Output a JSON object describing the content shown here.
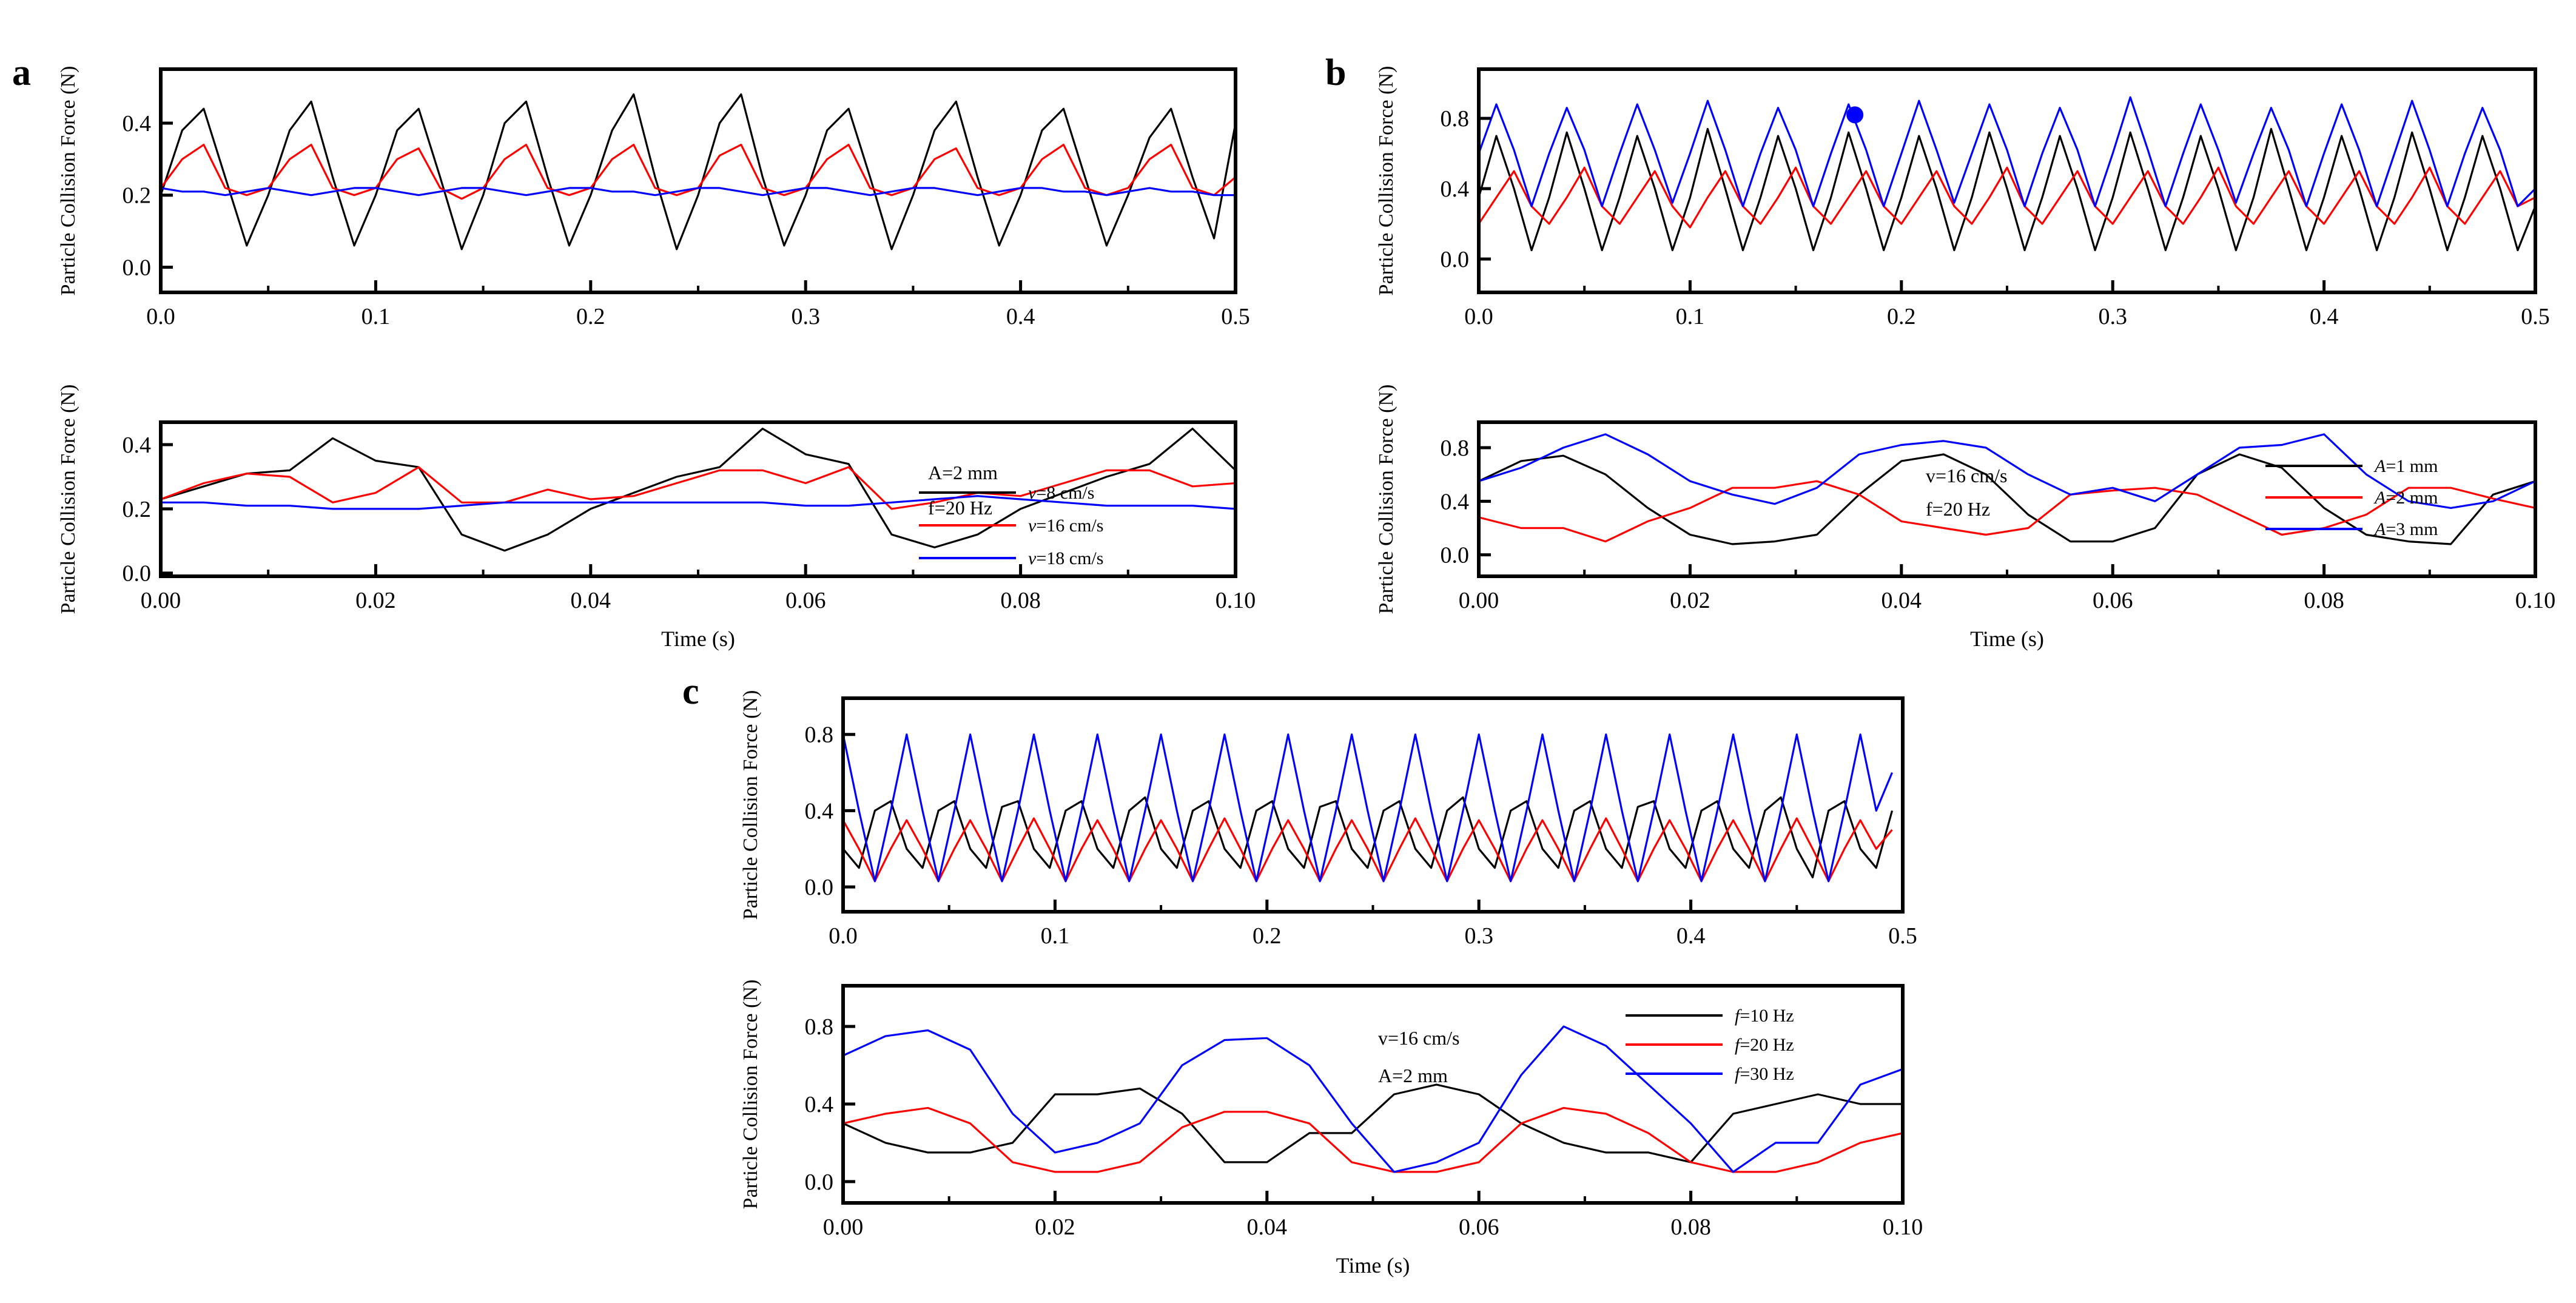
{
  "colors": {
    "black": "#000000",
    "red": "#ff0000",
    "blue": "#0000ff"
  },
  "chart_data": [
    {
      "id": "a-top",
      "panel_letter": "a",
      "type": "line",
      "ylabel": "Particle Collision Force (N)",
      "xlabel": "",
      "xlim": [
        0,
        0.5
      ],
      "ylim": [
        -0.07,
        0.55
      ],
      "xticks": [
        "0.0",
        "0.1",
        "0.2",
        "0.3",
        "0.4",
        "0.5"
      ],
      "yticks": [
        "0.0",
        "0.2",
        "0.4"
      ],
      "x_start": 0,
      "x_step": 0.01,
      "series": [
        {
          "name": "v=8 cm/s",
          "color": "black",
          "values": [
            0.2,
            0.38,
            0.44,
            0.25,
            0.06,
            0.2,
            0.38,
            0.46,
            0.25,
            0.06,
            0.2,
            0.38,
            0.44,
            0.25,
            0.05,
            0.2,
            0.4,
            0.46,
            0.25,
            0.06,
            0.2,
            0.38,
            0.48,
            0.25,
            0.05,
            0.2,
            0.4,
            0.48,
            0.25,
            0.06,
            0.2,
            0.38,
            0.44,
            0.25,
            0.05,
            0.2,
            0.38,
            0.46,
            0.25,
            0.06,
            0.2,
            0.38,
            0.44,
            0.25,
            0.06,
            0.2,
            0.36,
            0.44,
            0.25,
            0.08,
            0.4
          ]
        },
        {
          "name": "v=16 cm/s",
          "color": "red",
          "values": [
            0.22,
            0.3,
            0.34,
            0.22,
            0.2,
            0.22,
            0.3,
            0.34,
            0.22,
            0.2,
            0.22,
            0.3,
            0.33,
            0.22,
            0.19,
            0.22,
            0.3,
            0.34,
            0.22,
            0.2,
            0.22,
            0.3,
            0.34,
            0.22,
            0.2,
            0.22,
            0.31,
            0.34,
            0.22,
            0.2,
            0.22,
            0.3,
            0.34,
            0.22,
            0.2,
            0.22,
            0.3,
            0.33,
            0.22,
            0.2,
            0.22,
            0.3,
            0.34,
            0.22,
            0.2,
            0.22,
            0.3,
            0.34,
            0.22,
            0.2,
            0.25
          ]
        },
        {
          "name": "v=18 cm/s",
          "color": "blue",
          "values": [
            0.22,
            0.21,
            0.21,
            0.2,
            0.21,
            0.22,
            0.21,
            0.2,
            0.21,
            0.22,
            0.22,
            0.21,
            0.2,
            0.21,
            0.22,
            0.22,
            0.21,
            0.2,
            0.21,
            0.22,
            0.22,
            0.21,
            0.21,
            0.2,
            0.21,
            0.22,
            0.22,
            0.21,
            0.2,
            0.21,
            0.22,
            0.22,
            0.21,
            0.2,
            0.21,
            0.22,
            0.22,
            0.21,
            0.2,
            0.21,
            0.22,
            0.22,
            0.21,
            0.21,
            0.2,
            0.21,
            0.22,
            0.21,
            0.21,
            0.2,
            0.2
          ]
        }
      ]
    },
    {
      "id": "a-bottom",
      "panel_letter": "",
      "type": "line",
      "ylabel": "Particle Collision Force (N)",
      "xlabel": "Time (s)",
      "xlim": [
        0,
        0.1
      ],
      "ylim": [
        -0.01,
        0.47
      ],
      "xticks": [
        "0.00",
        "0.02",
        "0.04",
        "0.06",
        "0.08",
        "0.10"
      ],
      "yticks": [
        "0.0",
        "0.2",
        "0.4"
      ],
      "annotations": [
        "A=2 mm",
        "f=20 Hz"
      ],
      "legend": "right",
      "x_start": 0,
      "x_step": 0.004,
      "series": [
        {
          "name": "v=8 cm/s",
          "color": "black",
          "values": [
            0.23,
            0.27,
            0.31,
            0.32,
            0.42,
            0.35,
            0.33,
            0.12,
            0.07,
            0.12,
            0.2,
            0.25,
            0.3,
            0.33,
            0.45,
            0.37,
            0.34,
            0.12,
            0.08,
            0.12,
            0.2,
            0.25,
            0.3,
            0.34,
            0.45,
            0.32
          ]
        },
        {
          "name": "v=16 cm/s",
          "color": "red",
          "values": [
            0.23,
            0.28,
            0.31,
            0.3,
            0.22,
            0.25,
            0.33,
            0.22,
            0.22,
            0.26,
            0.23,
            0.24,
            0.28,
            0.32,
            0.32,
            0.28,
            0.33,
            0.2,
            0.22,
            0.25,
            0.24,
            0.28,
            0.32,
            0.32,
            0.27,
            0.28
          ]
        },
        {
          "name": "v=18 cm/s",
          "color": "blue",
          "values": [
            0.22,
            0.22,
            0.21,
            0.21,
            0.2,
            0.2,
            0.2,
            0.21,
            0.22,
            0.22,
            0.22,
            0.22,
            0.22,
            0.22,
            0.22,
            0.21,
            0.21,
            0.22,
            0.23,
            0.24,
            0.23,
            0.22,
            0.21,
            0.21,
            0.21,
            0.2
          ]
        }
      ]
    },
    {
      "id": "b-top",
      "panel_letter": "b",
      "type": "line",
      "ylabel": "Particle Collision Force (N)",
      "xlabel": "",
      "xlim": [
        0,
        0.5
      ],
      "ylim": [
        -0.19,
        1.08
      ],
      "xticks": [
        "0.0",
        "0.1",
        "0.2",
        "0.3",
        "0.4",
        "0.5"
      ],
      "yticks": [
        "0.0",
        "0.4",
        "0.8"
      ],
      "x_start": 0,
      "x_step": 0.008333,
      "marker": {
        "x": 0.178,
        "y": 0.82,
        "color": "blue"
      },
      "series": [
        {
          "name": "A=1 mm",
          "color": "black",
          "values": [
            0.35,
            0.7,
            0.4,
            0.05,
            0.35,
            0.72,
            0.4,
            0.05,
            0.35,
            0.7,
            0.4,
            0.05,
            0.35,
            0.74,
            0.4,
            0.05,
            0.35,
            0.7,
            0.4,
            0.05,
            0.35,
            0.72,
            0.4,
            0.05,
            0.35,
            0.7,
            0.4,
            0.05,
            0.35,
            0.72,
            0.4,
            0.05,
            0.35,
            0.7,
            0.4,
            0.05,
            0.35,
            0.72,
            0.4,
            0.05,
            0.35,
            0.7,
            0.4,
            0.05,
            0.35,
            0.74,
            0.4,
            0.05,
            0.35,
            0.7,
            0.4,
            0.05,
            0.35,
            0.72,
            0.4,
            0.05,
            0.35,
            0.7,
            0.4,
            0.05,
            0.3
          ]
        },
        {
          "name": "A=2 mm",
          "color": "red",
          "values": [
            0.2,
            0.35,
            0.5,
            0.3,
            0.2,
            0.35,
            0.52,
            0.3,
            0.2,
            0.35,
            0.5,
            0.3,
            0.18,
            0.35,
            0.5,
            0.3,
            0.2,
            0.35,
            0.52,
            0.3,
            0.2,
            0.35,
            0.5,
            0.3,
            0.2,
            0.35,
            0.5,
            0.3,
            0.2,
            0.35,
            0.52,
            0.3,
            0.2,
            0.35,
            0.5,
            0.3,
            0.2,
            0.35,
            0.5,
            0.3,
            0.2,
            0.35,
            0.52,
            0.3,
            0.2,
            0.35,
            0.5,
            0.3,
            0.2,
            0.35,
            0.5,
            0.3,
            0.2,
            0.35,
            0.52,
            0.3,
            0.2,
            0.35,
            0.5,
            0.3,
            0.35
          ]
        },
        {
          "name": "A=3 mm",
          "color": "blue",
          "values": [
            0.6,
            0.88,
            0.62,
            0.3,
            0.6,
            0.86,
            0.62,
            0.3,
            0.6,
            0.88,
            0.62,
            0.32,
            0.6,
            0.9,
            0.62,
            0.3,
            0.6,
            0.86,
            0.62,
            0.3,
            0.6,
            0.88,
            0.62,
            0.3,
            0.6,
            0.9,
            0.62,
            0.32,
            0.6,
            0.88,
            0.62,
            0.3,
            0.6,
            0.86,
            0.62,
            0.3,
            0.6,
            0.92,
            0.62,
            0.3,
            0.6,
            0.88,
            0.62,
            0.32,
            0.6,
            0.86,
            0.62,
            0.3,
            0.6,
            0.88,
            0.62,
            0.3,
            0.6,
            0.9,
            0.62,
            0.3,
            0.6,
            0.86,
            0.62,
            0.3,
            0.4
          ]
        }
      ]
    },
    {
      "id": "b-bottom",
      "panel_letter": "",
      "type": "line",
      "ylabel": "Particle Collision Force (N)",
      "xlabel": "Time (s)",
      "xlim": [
        0,
        0.1
      ],
      "ylim": [
        -0.16,
        0.99
      ],
      "xticks": [
        "0.00",
        "0.02",
        "0.04",
        "0.06",
        "0.08",
        "0.10"
      ],
      "yticks": [
        "0.0",
        "0.4",
        "0.8"
      ],
      "annotations": [
        "v=16 cm/s",
        "f=20 Hz"
      ],
      "legend": "top-right",
      "x_start": 0,
      "x_step": 0.004,
      "series": [
        {
          "name": "A=1 mm",
          "color": "black",
          "values": [
            0.55,
            0.7,
            0.74,
            0.6,
            0.35,
            0.15,
            0.08,
            0.1,
            0.15,
            0.45,
            0.7,
            0.75,
            0.6,
            0.3,
            0.1,
            0.1,
            0.2,
            0.6,
            0.75,
            0.65,
            0.35,
            0.15,
            0.1,
            0.08,
            0.45,
            0.55
          ]
        },
        {
          "name": "A=2 mm",
          "color": "red",
          "values": [
            0.28,
            0.2,
            0.2,
            0.1,
            0.25,
            0.35,
            0.5,
            0.5,
            0.55,
            0.45,
            0.25,
            0.2,
            0.15,
            0.2,
            0.45,
            0.48,
            0.5,
            0.45,
            0.3,
            0.15,
            0.2,
            0.3,
            0.5,
            0.5,
            0.42,
            0.35
          ]
        },
        {
          "name": "A=3 mm",
          "color": "blue",
          "values": [
            0.55,
            0.65,
            0.8,
            0.9,
            0.75,
            0.55,
            0.45,
            0.38,
            0.5,
            0.75,
            0.82,
            0.85,
            0.8,
            0.6,
            0.45,
            0.5,
            0.4,
            0.6,
            0.8,
            0.82,
            0.9,
            0.6,
            0.4,
            0.35,
            0.4,
            0.55
          ]
        }
      ]
    },
    {
      "id": "c-top",
      "panel_letter": "c",
      "type": "line",
      "ylabel": "Particle Collision Force (N)",
      "xlabel": "",
      "xlim": [
        0,
        0.5
      ],
      "ylim": [
        -0.13,
        0.99
      ],
      "xticks": [
        "0.0",
        "0.1",
        "0.2",
        "0.3",
        "0.4",
        "0.5"
      ],
      "yticks": [
        "0.0",
        "0.4",
        "0.8"
      ],
      "x_start": 0,
      "x_step": 0.0075,
      "series": [
        {
          "name": "f=10 Hz",
          "color": "black",
          "values": [
            0.2,
            0.1,
            0.4,
            0.45,
            0.2,
            0.1,
            0.4,
            0.45,
            0.2,
            0.1,
            0.42,
            0.45,
            0.2,
            0.1,
            0.4,
            0.45,
            0.2,
            0.1,
            0.4,
            0.47,
            0.2,
            0.1,
            0.4,
            0.45,
            0.2,
            0.1,
            0.4,
            0.45,
            0.2,
            0.1,
            0.42,
            0.45,
            0.2,
            0.1,
            0.4,
            0.45,
            0.2,
            0.1,
            0.4,
            0.47,
            0.2,
            0.1,
            0.4,
            0.45,
            0.2,
            0.1,
            0.4,
            0.45,
            0.2,
            0.1,
            0.42,
            0.45,
            0.2,
            0.1,
            0.4,
            0.45,
            0.2,
            0.1,
            0.4,
            0.47,
            0.2,
            0.05,
            0.4,
            0.45,
            0.2,
            0.1,
            0.4
          ]
        },
        {
          "name": "f=20 Hz",
          "color": "red",
          "values": [
            0.35,
            0.2,
            0.03,
            0.2,
            0.35,
            0.2,
            0.03,
            0.2,
            0.35,
            0.2,
            0.03,
            0.2,
            0.36,
            0.2,
            0.03,
            0.2,
            0.35,
            0.2,
            0.03,
            0.2,
            0.35,
            0.2,
            0.03,
            0.2,
            0.36,
            0.2,
            0.03,
            0.2,
            0.35,
            0.2,
            0.03,
            0.2,
            0.35,
            0.2,
            0.03,
            0.2,
            0.36,
            0.2,
            0.03,
            0.2,
            0.35,
            0.2,
            0.03,
            0.2,
            0.35,
            0.2,
            0.03,
            0.2,
            0.36,
            0.2,
            0.03,
            0.2,
            0.35,
            0.2,
            0.03,
            0.2,
            0.35,
            0.2,
            0.03,
            0.2,
            0.36,
            0.2,
            0.03,
            0.2,
            0.35,
            0.2,
            0.3
          ]
        },
        {
          "name": "f=30 Hz",
          "color": "blue",
          "values": [
            0.8,
            0.4,
            0.03,
            0.4,
            0.8,
            0.4,
            0.03,
            0.4,
            0.8,
            0.4,
            0.03,
            0.4,
            0.8,
            0.4,
            0.03,
            0.4,
            0.8,
            0.4,
            0.03,
            0.4,
            0.8,
            0.4,
            0.03,
            0.4,
            0.8,
            0.4,
            0.03,
            0.4,
            0.8,
            0.4,
            0.03,
            0.4,
            0.8,
            0.4,
            0.03,
            0.4,
            0.8,
            0.4,
            0.03,
            0.4,
            0.8,
            0.4,
            0.03,
            0.4,
            0.8,
            0.4,
            0.03,
            0.4,
            0.8,
            0.4,
            0.03,
            0.4,
            0.8,
            0.4,
            0.03,
            0.4,
            0.8,
            0.4,
            0.03,
            0.4,
            0.8,
            0.4,
            0.03,
            0.4,
            0.8,
            0.4,
            0.6
          ]
        }
      ]
    },
    {
      "id": "c-bottom",
      "panel_letter": "",
      "type": "line",
      "ylabel": "Particle Collision Force (N)",
      "xlabel": "Time (s)",
      "xlim": [
        0,
        0.1
      ],
      "ylim": [
        -0.11,
        1.01
      ],
      "xticks": [
        "0.00",
        "0.02",
        "0.04",
        "0.06",
        "0.08",
        "0.10"
      ],
      "yticks": [
        "0.0",
        "0.4",
        "0.8"
      ],
      "annotations": [
        "v=16 cm/s",
        "A=2 mm"
      ],
      "legend": "top-right",
      "x_start": 0,
      "x_step": 0.004,
      "series": [
        {
          "name": "f=10 Hz",
          "color": "black",
          "values": [
            0.3,
            0.2,
            0.15,
            0.15,
            0.2,
            0.45,
            0.45,
            0.48,
            0.35,
            0.1,
            0.1,
            0.25,
            0.25,
            0.45,
            0.5,
            0.45,
            0.3,
            0.2,
            0.15,
            0.15,
            0.1,
            0.35,
            0.4,
            0.45,
            0.4,
            0.4
          ]
        },
        {
          "name": "f=20 Hz",
          "color": "red",
          "values": [
            0.3,
            0.35,
            0.38,
            0.3,
            0.1,
            0.05,
            0.05,
            0.1,
            0.28,
            0.36,
            0.36,
            0.3,
            0.1,
            0.05,
            0.05,
            0.1,
            0.3,
            0.38,
            0.35,
            0.25,
            0.1,
            0.05,
            0.05,
            0.1,
            0.2,
            0.25
          ]
        },
        {
          "name": "f=30 Hz",
          "color": "blue",
          "values": [
            0.65,
            0.75,
            0.78,
            0.68,
            0.35,
            0.15,
            0.2,
            0.3,
            0.6,
            0.73,
            0.74,
            0.6,
            0.3,
            0.05,
            0.1,
            0.2,
            0.55,
            0.8,
            0.7,
            0.5,
            0.3,
            0.05,
            0.2,
            0.2,
            0.5,
            0.58
          ]
        }
      ]
    }
  ]
}
